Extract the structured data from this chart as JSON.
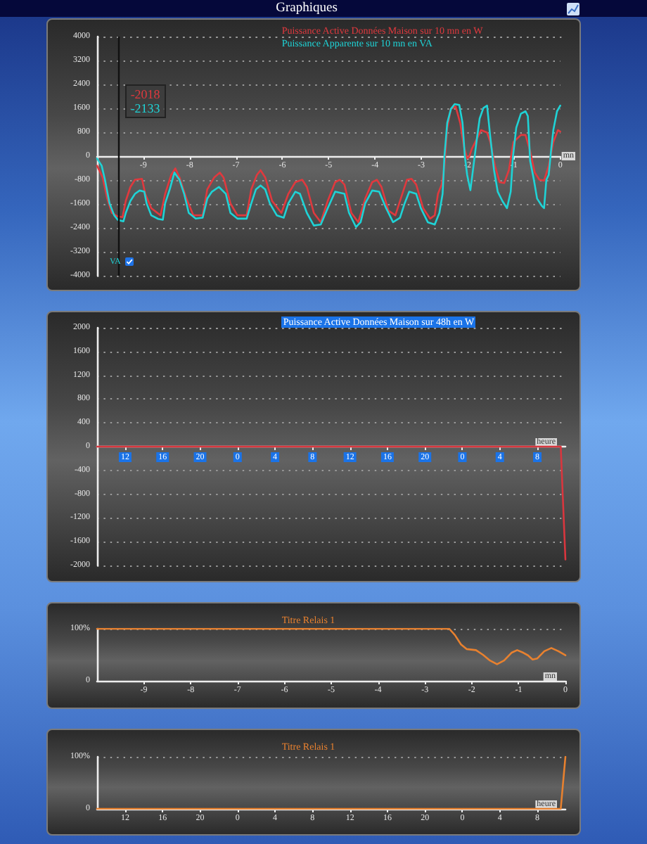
{
  "chart_data": [
    {
      "type": "line",
      "title": "Graphiques",
      "xlabel": "mn",
      "xlim": [
        -10,
        0
      ],
      "xticks": [
        -9,
        -8,
        -7,
        -6,
        -5,
        -4,
        -3,
        -2,
        -1,
        0
      ],
      "ylim": [
        -4000,
        4000
      ],
      "yticks": [
        -4000,
        -3200,
        -2400,
        -1600,
        -800,
        0,
        800,
        1600,
        2400,
        3200,
        4000
      ],
      "grid": "y",
      "legend": "top",
      "ref_lines": [
        {
          "axis": "x",
          "value": -9.55,
          "color": "#111111"
        }
      ],
      "annotations": [
        "-2018",
        "-2133",
        "VA"
      ],
      "series": [
        {
          "name": "Puissance Active Données Maison sur 10 mn en W",
          "color": "#e0393e",
          "x": [
            -10,
            -9.88,
            -9.78,
            -9.68,
            -9.55,
            -9.45,
            -9.38,
            -9.28,
            -9.18,
            -9.03,
            -8.96,
            -8.83,
            -8.63,
            -8.53,
            -8.4,
            -8.31,
            -8.22,
            -8.07,
            -7.92,
            -7.72,
            -7.62,
            -7.47,
            -7.35,
            -7.27,
            -7.12,
            -6.97,
            -6.77,
            -6.67,
            -6.55,
            -6.47,
            -6.37,
            -6.22,
            -6.02,
            -5.87,
            -5.72,
            -5.57,
            -5.47,
            -5.32,
            -5.17,
            -5.02,
            -4.86,
            -4.76,
            -4.66,
            -4.51,
            -4.36,
            -4.21,
            -4.06,
            -3.96,
            -3.86,
            -3.71,
            -3.56,
            -3.41,
            -3.31,
            -3.21,
            -3.11,
            -2.96,
            -2.81,
            -2.71,
            -2.64,
            -2.56,
            -2.5,
            -2.44,
            -2.36,
            -2.26,
            -2.16,
            -2.08,
            -2.01,
            -1.96,
            -1.91,
            -1.81,
            -1.71,
            -1.58,
            -1.51,
            -1.41,
            -1.31,
            -1.21,
            -1.11,
            -1.01,
            -0.85,
            -0.75,
            -0.65,
            -0.55,
            -0.45,
            -0.35,
            -0.25,
            -0.15,
            -0.05,
            0
          ],
          "values": [
            -320,
            -710,
            -1420,
            -1900,
            -2018,
            -2040,
            -1500,
            -1030,
            -790,
            -760,
            -1260,
            -1740,
            -1980,
            -1260,
            -630,
            -410,
            -710,
            -1420,
            -1980,
            -1980,
            -1110,
            -710,
            -550,
            -710,
            -1580,
            -1980,
            -1980,
            -1110,
            -630,
            -470,
            -710,
            -1500,
            -1900,
            -1260,
            -870,
            -790,
            -1030,
            -1900,
            -2210,
            -1500,
            -870,
            -790,
            -950,
            -1900,
            -2210,
            -1420,
            -870,
            -790,
            -1030,
            -1820,
            -1980,
            -1260,
            -790,
            -760,
            -950,
            -1740,
            -2090,
            -1980,
            -1260,
            -950,
            -320,
            950,
            1580,
            1660,
            1110,
            320,
            -80,
            0,
            240,
            550,
            870,
            790,
            470,
            -320,
            -870,
            -900,
            -470,
            470,
            710,
            710,
            160,
            -550,
            -790,
            -820,
            -320,
            470,
            870,
            820
          ]
        },
        {
          "name": "Puissance Apparente sur 10 mn en VA",
          "color": "#1fd3d6",
          "x": [
            -10,
            -9.9,
            -9.83,
            -9.73,
            -9.63,
            -9.55,
            -9.43,
            -9.38,
            -9.28,
            -9.18,
            -9.08,
            -8.98,
            -8.93,
            -8.83,
            -8.68,
            -8.58,
            -8.53,
            -8.43,
            -8.33,
            -8.22,
            -8.12,
            -8.02,
            -7.87,
            -7.72,
            -7.62,
            -7.52,
            -7.37,
            -7.22,
            -7.12,
            -6.97,
            -6.77,
            -6.67,
            -6.57,
            -6.47,
            -6.37,
            -6.27,
            -6.12,
            -5.97,
            -5.87,
            -5.72,
            -5.62,
            -5.47,
            -5.32,
            -5.17,
            -5.02,
            -4.86,
            -4.66,
            -4.56,
            -4.41,
            -4.31,
            -4.21,
            -4.06,
            -3.91,
            -3.76,
            -3.61,
            -3.46,
            -3.36,
            -3.26,
            -3.11,
            -3.01,
            -2.86,
            -2.71,
            -2.61,
            -2.54,
            -2.5,
            -2.44,
            -2.36,
            -2.28,
            -2.18,
            -2.11,
            -2.06,
            -2.01,
            -1.94,
            -1.86,
            -1.81,
            -1.74,
            -1.66,
            -1.58,
            -1.51,
            -1.43,
            -1.35,
            -1.25,
            -1.15,
            -1.07,
            -1.02,
            -0.95,
            -0.85,
            -0.75,
            -0.7,
            -0.65,
            -0.57,
            -0.5,
            -0.4,
            -0.35,
            -0.3,
            -0.25,
            -0.2,
            -0.15,
            -0.07,
            0
          ],
          "values": [
            -80,
            -320,
            -790,
            -1580,
            -1980,
            -2133,
            -2180,
            -1900,
            -1500,
            -1260,
            -1150,
            -1190,
            -1580,
            -1980,
            -2100,
            -2130,
            -1580,
            -1110,
            -550,
            -790,
            -1260,
            -1900,
            -2090,
            -2060,
            -1420,
            -1190,
            -1030,
            -1260,
            -1900,
            -2090,
            -2090,
            -1580,
            -1110,
            -980,
            -1110,
            -1580,
            -1980,
            -2060,
            -1580,
            -1190,
            -1260,
            -1900,
            -2320,
            -2290,
            -1740,
            -1190,
            -1260,
            -1900,
            -2370,
            -2210,
            -1580,
            -1150,
            -1190,
            -1740,
            -2210,
            -2060,
            -1580,
            -1190,
            -1260,
            -1740,
            -2210,
            -2290,
            -1900,
            -1260,
            0,
            1110,
            1580,
            1740,
            1710,
            1110,
            0,
            -630,
            -1140,
            -160,
            470,
            1260,
            1610,
            1690,
            630,
            -470,
            -1190,
            -1500,
            -1740,
            -1190,
            0,
            950,
            1420,
            1500,
            1340,
            -160,
            -790,
            -1420,
            -1660,
            -1740,
            -790,
            -630,
            160,
            870,
            1500,
            1690
          ]
        }
      ]
    },
    {
      "type": "line",
      "xlabel": "heure",
      "categories": [
        null,
        null,
        null,
        null,
        null,
        null,
        "12",
        null,
        null,
        null,
        null,
        null,
        null,
        null,
        "16",
        null,
        null,
        null,
        null,
        null,
        null,
        null,
        "20",
        null,
        null,
        null,
        null,
        null,
        null,
        null,
        "0",
        null,
        null,
        null,
        null,
        null,
        null,
        null,
        "4",
        null,
        null,
        null,
        null,
        null,
        null,
        null,
        "8",
        null,
        null,
        null,
        null,
        null,
        null,
        null,
        "12",
        null,
        null,
        null,
        null,
        null,
        null,
        null,
        "16",
        null,
        null,
        null,
        null,
        null,
        null,
        null,
        "20",
        null,
        null,
        null,
        null,
        null,
        null,
        null,
        "0",
        null,
        null,
        null,
        null,
        null,
        null,
        null,
        "4",
        null,
        null,
        null,
        null,
        null,
        null,
        null,
        "8",
        null,
        null,
        null,
        null,
        null,
        null
      ],
      "ylim": [
        -2000,
        2000
      ],
      "yticks": [
        -2000,
        -1600,
        -1200,
        -800,
        -400,
        0,
        400,
        800,
        1200,
        1600,
        2000
      ],
      "grid": "y",
      "legend": "top",
      "series": [
        {
          "name": "Puissance Active Données Maison sur 48h en W",
          "color": "#d9363e",
          "values": [
            0,
            0,
            0,
            0,
            0,
            0,
            0,
            0,
            0,
            0,
            0,
            0,
            0,
            0,
            0,
            0,
            0,
            0,
            0,
            0,
            0,
            0,
            0,
            0,
            0,
            0,
            0,
            0,
            0,
            0,
            0,
            0,
            0,
            0,
            0,
            0,
            0,
            0,
            0,
            0,
            0,
            0,
            0,
            0,
            0,
            0,
            0,
            0,
            0,
            0,
            0,
            0,
            0,
            0,
            0,
            0,
            0,
            0,
            0,
            0,
            0,
            0,
            0,
            0,
            0,
            0,
            0,
            0,
            0,
            0,
            0,
            0,
            0,
            0,
            0,
            0,
            0,
            0,
            0,
            0,
            0,
            0,
            0,
            0,
            0,
            0,
            0,
            0,
            0,
            0,
            0,
            0,
            0,
            0,
            0,
            0,
            0,
            0,
            0,
            0,
            -1900
          ]
        }
      ]
    },
    {
      "type": "line",
      "xlabel": "mn",
      "xlim": [
        -10,
        0
      ],
      "xticks": [
        -9,
        -8,
        -7,
        -6,
        -5,
        -4,
        -3,
        -2,
        -1,
        0
      ],
      "ylim": [
        0,
        100
      ],
      "yticks": [
        0,
        {
          "value": 100,
          "label": "100%"
        }
      ],
      "legend": "top",
      "series": [
        {
          "name": "Titre Relais 1",
          "color": "#e8812f",
          "x": [
            -10,
            -2.48,
            -2.36,
            -2.23,
            -2.11,
            -1.91,
            -1.76,
            -1.61,
            -1.46,
            -1.31,
            -1.15,
            -1.03,
            -0.9,
            -0.8,
            -0.7,
            -0.6,
            -0.45,
            -0.3,
            -0.15,
            0
          ],
          "values": [
            100,
            100,
            88,
            70,
            61,
            59,
            50,
            39,
            32,
            39,
            54,
            59,
            54,
            49,
            41,
            43,
            57,
            63,
            57,
            49
          ]
        }
      ]
    },
    {
      "type": "line",
      "xlabel": "heure",
      "categories": [
        null,
        null,
        null,
        null,
        null,
        null,
        "12",
        null,
        null,
        null,
        null,
        null,
        null,
        null,
        "16",
        null,
        null,
        null,
        null,
        null,
        null,
        null,
        "20",
        null,
        null,
        null,
        null,
        null,
        null,
        null,
        "0",
        null,
        null,
        null,
        null,
        null,
        null,
        null,
        "4",
        null,
        null,
        null,
        null,
        null,
        null,
        null,
        "8",
        null,
        null,
        null,
        null,
        null,
        null,
        null,
        "12",
        null,
        null,
        null,
        null,
        null,
        null,
        null,
        "16",
        null,
        null,
        null,
        null,
        null,
        null,
        null,
        "20",
        null,
        null,
        null,
        null,
        null,
        null,
        null,
        "0",
        null,
        null,
        null,
        null,
        null,
        null,
        null,
        "4",
        null,
        null,
        null,
        null,
        null,
        null,
        null,
        "8",
        null,
        null,
        null,
        null,
        null,
        null
      ],
      "ylim": [
        0,
        100
      ],
      "yticks": [
        0,
        {
          "value": 100,
          "label": "100%"
        }
      ],
      "legend": "top",
      "series": [
        {
          "name": "Titre Relais 1",
          "color": "#e8812f",
          "values": [
            0,
            0,
            0,
            0,
            0,
            0,
            0,
            0,
            0,
            0,
            0,
            0,
            0,
            0,
            0,
            0,
            0,
            0,
            0,
            0,
            0,
            0,
            0,
            0,
            0,
            0,
            0,
            0,
            0,
            0,
            0,
            0,
            0,
            0,
            0,
            0,
            0,
            0,
            0,
            0,
            0,
            0,
            0,
            0,
            0,
            0,
            0,
            0,
            0,
            0,
            0,
            0,
            0,
            0,
            0,
            0,
            0,
            0,
            0,
            0,
            0,
            0,
            0,
            0,
            0,
            0,
            0,
            0,
            0,
            0,
            0,
            0,
            0,
            0,
            0,
            0,
            0,
            0,
            0,
            0,
            0,
            0,
            0,
            0,
            0,
            0,
            0,
            0,
            0,
            0,
            0,
            0,
            0,
            0,
            0,
            0,
            0,
            0,
            0,
            0,
            100
          ]
        }
      ]
    }
  ]
}
